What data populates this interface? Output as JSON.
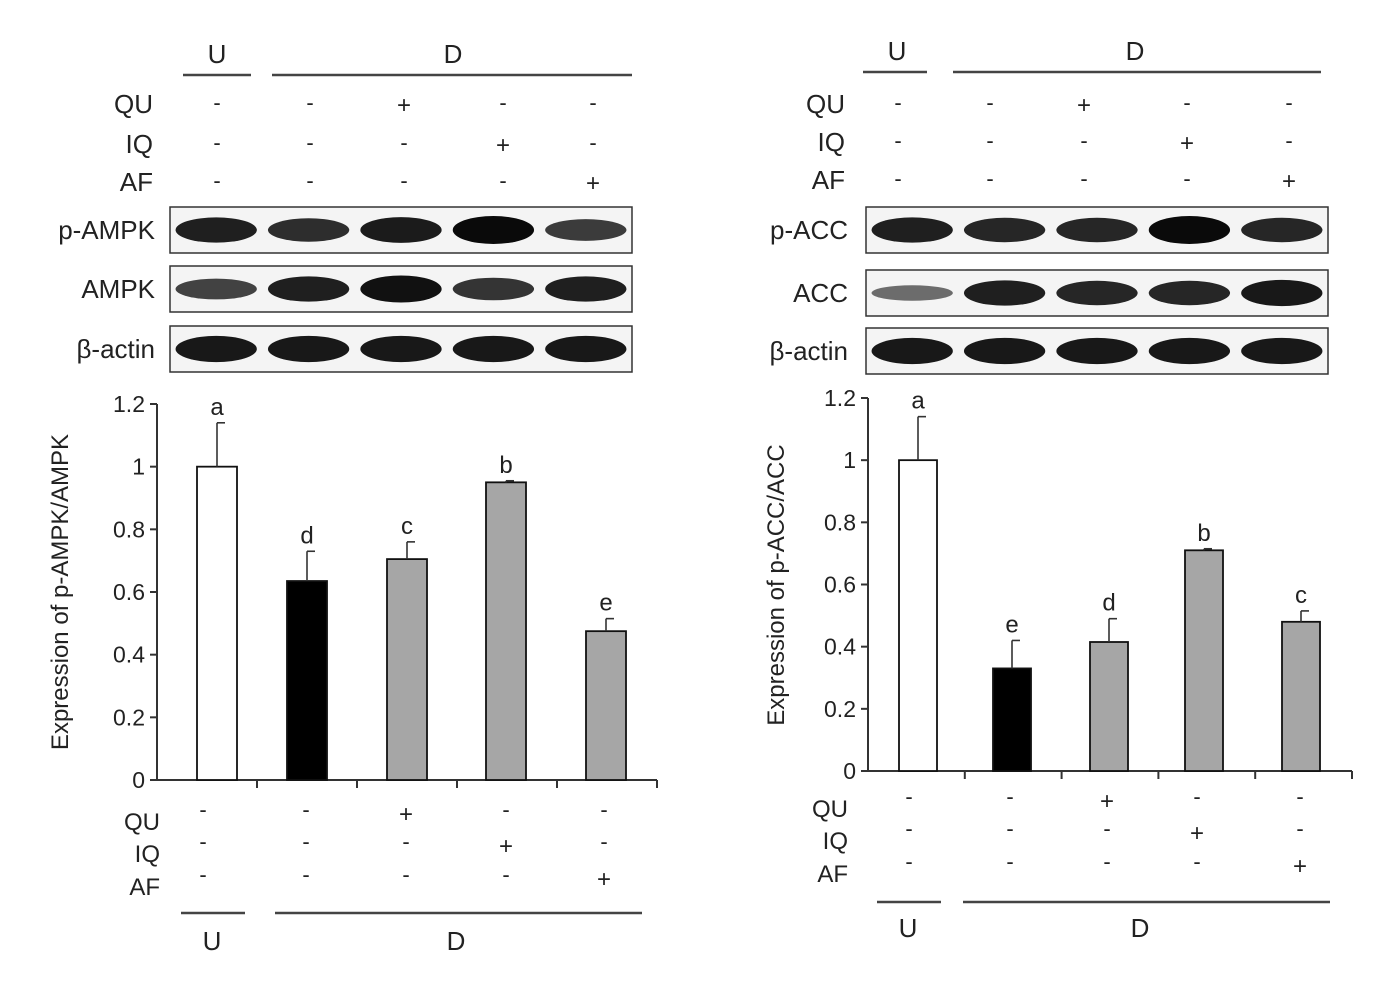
{
  "panels": [
    {
      "id": "ampk",
      "top_groups": {
        "u": "U",
        "d": "D"
      },
      "top_rows": [
        {
          "label": "QU",
          "marks": [
            "-",
            "-",
            "+",
            "-",
            "-"
          ]
        },
        {
          "label": "IQ",
          "marks": [
            "-",
            "-",
            "-",
            "+",
            "-"
          ]
        },
        {
          "label": "AF",
          "marks": [
            "-",
            "-",
            "-",
            "-",
            "+"
          ]
        }
      ],
      "blots": [
        {
          "label": "p-AMPK",
          "intensity": [
            0.85,
            0.75,
            0.88,
            1.0,
            0.65
          ]
        },
        {
          "label": "AMPK",
          "intensity": [
            0.6,
            0.85,
            0.95,
            0.7,
            0.85
          ]
        },
        {
          "label": "β-actin",
          "intensity": [
            0.9,
            0.9,
            0.9,
            0.9,
            0.9
          ]
        }
      ],
      "bottom_rows": [
        {
          "label": "QU",
          "marks": [
            "-",
            "-",
            "+",
            "-",
            "-"
          ]
        },
        {
          "label": "IQ",
          "marks": [
            "-",
            "-",
            "-",
            "+",
            "-"
          ]
        },
        {
          "label": "AF",
          "marks": [
            "-",
            "-",
            "-",
            "-",
            "+"
          ]
        }
      ],
      "bottom_groups": {
        "u": "U",
        "d": "D"
      },
      "colors": [
        "#ffffff",
        "#000000",
        "#a6a6a6",
        "#a6a6a6",
        "#a6a6a6"
      ]
    },
    {
      "id": "acc",
      "top_groups": {
        "u": "U",
        "d": "D"
      },
      "top_rows": [
        {
          "label": "QU",
          "marks": [
            "-",
            "-",
            "+",
            "-",
            "-"
          ]
        },
        {
          "label": "IQ",
          "marks": [
            "-",
            "-",
            "-",
            "+",
            "-"
          ]
        },
        {
          "label": "AF",
          "marks": [
            "-",
            "-",
            "-",
            "-",
            "+"
          ]
        }
      ],
      "blots": [
        {
          "label": "p-ACC",
          "intensity": [
            0.85,
            0.8,
            0.8,
            1.0,
            0.8
          ]
        },
        {
          "label": "ACC",
          "intensity": [
            0.3,
            0.85,
            0.8,
            0.8,
            0.9
          ]
        },
        {
          "label": "β-actin",
          "intensity": [
            0.9,
            0.9,
            0.9,
            0.9,
            0.9
          ]
        }
      ],
      "bottom_rows": [
        {
          "label": "QU",
          "marks": [
            "-",
            "-",
            "+",
            "-",
            "-"
          ]
        },
        {
          "label": "IQ",
          "marks": [
            "-",
            "-",
            "-",
            "+",
            "-"
          ]
        },
        {
          "label": "AF",
          "marks": [
            "-",
            "-",
            "-",
            "-",
            "+"
          ]
        }
      ],
      "bottom_groups": {
        "u": "U",
        "d": "D"
      },
      "colors": [
        "#ffffff",
        "#000000",
        "#a6a6a6",
        "#a6a6a6",
        "#a6a6a6"
      ]
    }
  ],
  "chart_data": [
    {
      "type": "bar",
      "title": "",
      "xlabel": "",
      "ylabel": "Expression of p-AMPK/AMPK",
      "ylim": [
        0,
        1.2
      ],
      "yticks": [
        "0",
        "0.2",
        "0.4",
        "0.6",
        "0.8",
        "1",
        "1.2"
      ],
      "values": [
        1.0,
        0.635,
        0.705,
        0.95,
        0.475
      ],
      "errors": [
        0.14,
        0.095,
        0.055,
        0.005,
        0.04
      ],
      "letters": [
        "a",
        "d",
        "c",
        "b",
        "e"
      ]
    },
    {
      "type": "bar",
      "title": "",
      "xlabel": "",
      "ylabel": "Expression of p-ACC/ACC",
      "ylim": [
        0,
        1.2
      ],
      "yticks": [
        "0",
        "0.2",
        "0.4",
        "0.6",
        "0.8",
        "1",
        "1.2"
      ],
      "values": [
        1.0,
        0.33,
        0.415,
        0.71,
        0.48
      ],
      "errors": [
        0.14,
        0.09,
        0.075,
        0.005,
        0.035
      ],
      "letters": [
        "a",
        "e",
        "d",
        "b",
        "c"
      ]
    }
  ]
}
